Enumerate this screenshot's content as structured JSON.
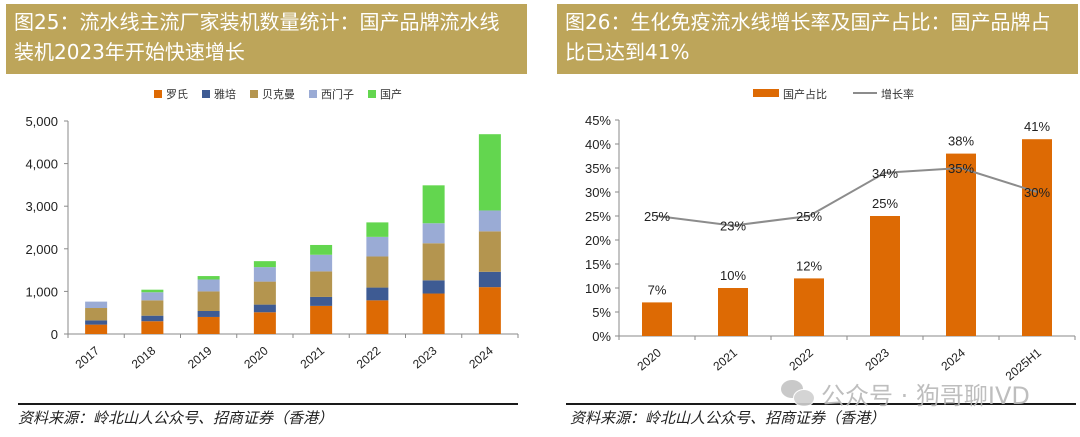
{
  "left_panel": {
    "title": "图25：流水线主流厂家装机数量统计：国产品牌流水线装机2023年开始快速增长",
    "source": "资料来源：岭北山人公众号、招商证券（香港）"
  },
  "right_panel": {
    "title": "图26：生化免疫流水线增长率及国产占比：国产品牌占比已达到41%",
    "source": "资料来源：岭北山人公众号、招商证券（香港）"
  },
  "watermark": {
    "text": "公众号 · 狗哥聊IVD",
    "icon": "wechat-icon"
  },
  "chart_data": [
    {
      "type": "bar",
      "stacked": true,
      "title": "",
      "xlabel": "",
      "ylabel": "",
      "ylim": [
        0,
        5000
      ],
      "yticks": [
        "0",
        "1,000",
        "2,000",
        "3,000",
        "4,000",
        "5,000"
      ],
      "ytick_values": [
        0,
        1000,
        2000,
        3000,
        4000,
        5000
      ],
      "legend_position": "top",
      "categories": [
        "2017",
        "2018",
        "2019",
        "2020",
        "2021",
        "2022",
        "2023",
        "2024"
      ],
      "series": [
        {
          "name": "罗氏",
          "color": "#dd6a04",
          "values": [
            220,
            300,
            400,
            510,
            660,
            790,
            950,
            1100
          ]
        },
        {
          "name": "雅培",
          "color": "#3e5b93",
          "values": [
            100,
            130,
            140,
            180,
            210,
            300,
            310,
            360
          ]
        },
        {
          "name": "贝克曼",
          "color": "#b4954f",
          "values": [
            290,
            360,
            460,
            540,
            600,
            730,
            870,
            950
          ]
        },
        {
          "name": "西门子",
          "color": "#9aabd5",
          "values": [
            150,
            190,
            280,
            340,
            390,
            460,
            470,
            490
          ]
        },
        {
          "name": "国产",
          "color": "#63d64f",
          "values": [
            0,
            60,
            80,
            140,
            230,
            340,
            890,
            1790
          ]
        }
      ]
    },
    {
      "type": "bar+line",
      "title": "",
      "xlabel": "",
      "ylabel": "",
      "ylim": [
        0,
        45
      ],
      "yticks": [
        "0%",
        "5%",
        "10%",
        "15%",
        "20%",
        "25%",
        "30%",
        "35%",
        "40%",
        "45%"
      ],
      "ytick_values": [
        0,
        5,
        10,
        15,
        20,
        25,
        30,
        35,
        40,
        45
      ],
      "legend_position": "top",
      "categories": [
        "2020",
        "2021",
        "2022",
        "2023",
        "2024",
        "2025H1"
      ],
      "series": [
        {
          "name": "国产占比",
          "kind": "bar",
          "color": "#dd6a04",
          "values": [
            7,
            10,
            12,
            25,
            38,
            41
          ],
          "labels": [
            "7%",
            "10%",
            "12%",
            "25%",
            "38%",
            "41%"
          ]
        },
        {
          "name": "增长率",
          "kind": "line",
          "color": "#8c8c8c",
          "values": [
            25,
            23,
            25,
            34,
            35,
            30
          ],
          "labels": [
            "25%",
            "23%",
            "25%",
            "34%",
            "35%",
            "30%"
          ]
        }
      ]
    }
  ]
}
